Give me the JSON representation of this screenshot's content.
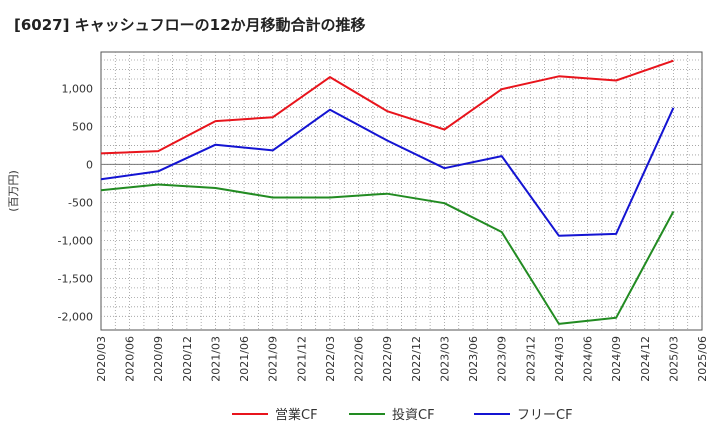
{
  "chart_data": {
    "type": "line",
    "title": "[6027]  キャッシュフローの12か月移動合計の推移",
    "ylabel": "(百万円)",
    "xlabel": "",
    "x": [
      "2020/03",
      "2020/06",
      "2020/09",
      "2020/12",
      "2021/03",
      "2021/06",
      "2021/09",
      "2021/12",
      "2022/03",
      "2022/06",
      "2022/09",
      "2022/12",
      "2023/03",
      "2023/06",
      "2023/09",
      "2023/12",
      "2024/03",
      "2024/06",
      "2024/09",
      "2024/12",
      "2025/03",
      "2025/06"
    ],
    "ylim": [
      -2180,
      1480
    ],
    "yticks": [
      1000,
      500,
      0,
      -500,
      -1000,
      -1500,
      -2000
    ],
    "ytick_labels": [
      "1,000",
      "500",
      "0",
      "-500",
      "-1,000",
      "-1,500",
      "-2,000"
    ],
    "grid": true,
    "legend_position": "bottom",
    "series": [
      {
        "name": "営業CF",
        "color": "#e8141c",
        "x": [
          "2020/03",
          "2020/09",
          "2021/03",
          "2021/09",
          "2022/03",
          "2022/09",
          "2023/03",
          "2023/09",
          "2024/03",
          "2024/09",
          "2025/03"
        ],
        "values": [
          145,
          175,
          570,
          620,
          1150,
          700,
          460,
          990,
          1160,
          1105,
          1365
        ]
      },
      {
        "name": "投資CF",
        "color": "#228b22",
        "x": [
          "2020/03",
          "2020/09",
          "2021/03",
          "2021/09",
          "2022/03",
          "2022/09",
          "2023/03",
          "2023/09",
          "2024/03",
          "2024/09",
          "2025/03"
        ],
        "values": [
          -340,
          -265,
          -310,
          -435,
          -435,
          -385,
          -510,
          -890,
          -2100,
          -2020,
          -620
        ]
      },
      {
        "name": "フリーCF",
        "color": "#1414d2",
        "x": [
          "2020/03",
          "2020/09",
          "2021/03",
          "2021/09",
          "2022/03",
          "2022/09",
          "2023/03",
          "2023/09",
          "2024/03",
          "2024/09",
          "2025/03"
        ],
        "values": [
          -195,
          -90,
          260,
          185,
          720,
          315,
          -50,
          110,
          -940,
          -915,
          745
        ]
      }
    ]
  }
}
